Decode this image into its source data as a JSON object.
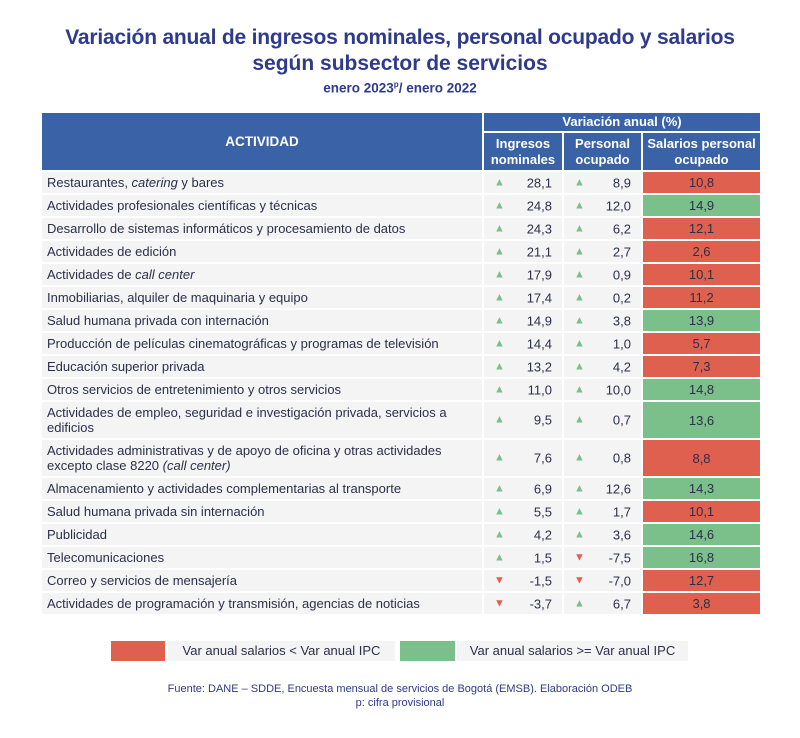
{
  "title": {
    "line1": "Variación anual de ingresos nominales, personal ocupado y salarios",
    "line2": "según subsector de servicios",
    "period_a": "enero 2023",
    "period_sup": "p",
    "period_b": "/ enero 2022"
  },
  "table": {
    "header_actividad": "ACTIVIDAD",
    "header_group": "Variación anual (%)",
    "header_ingresos": "Ingresos nominales",
    "header_personal": "Personal ocupado",
    "header_salarios": "Salarios personal ocupado",
    "rows": [
      {
        "pre": "Restaurantes, ",
        "ital": "catering",
        "post": " y bares",
        "ing": "28,1",
        "ing_dir": "up",
        "per": "8,9",
        "per_dir": "up",
        "sal": "10,8",
        "sal_status": "red"
      },
      {
        "pre": "Actividades profesionales científicas y técnicas",
        "ital": "",
        "post": "",
        "ing": "24,8",
        "ing_dir": "up",
        "per": "12,0",
        "per_dir": "up",
        "sal": "14,9",
        "sal_status": "green"
      },
      {
        "pre": "Desarrollo de sistemas informáticos y procesamiento de datos",
        "ital": "",
        "post": "",
        "ing": "24,3",
        "ing_dir": "up",
        "per": "6,2",
        "per_dir": "up",
        "sal": "12,1",
        "sal_status": "red"
      },
      {
        "pre": "Actividades de edición",
        "ital": "",
        "post": "",
        "ing": "21,1",
        "ing_dir": "up",
        "per": "2,7",
        "per_dir": "up",
        "sal": "2,6",
        "sal_status": "red"
      },
      {
        "pre": "Actividades de ",
        "ital": "call center",
        "post": "",
        "ing": "17,9",
        "ing_dir": "up",
        "per": "0,9",
        "per_dir": "up",
        "sal": "10,1",
        "sal_status": "red"
      },
      {
        "pre": "Inmobiliarias, alquiler de maquinaria y equipo",
        "ital": "",
        "post": "",
        "ing": "17,4",
        "ing_dir": "up",
        "per": "0,2",
        "per_dir": "up",
        "sal": "11,2",
        "sal_status": "red"
      },
      {
        "pre": "Salud humana privada con internación",
        "ital": "",
        "post": "",
        "ing": "14,9",
        "ing_dir": "up",
        "per": "3,8",
        "per_dir": "up",
        "sal": "13,9",
        "sal_status": "green"
      },
      {
        "pre": "Producción de películas cinematográficas y programas de televisión",
        "ital": "",
        "post": "",
        "ing": "14,4",
        "ing_dir": "up",
        "per": "1,0",
        "per_dir": "up",
        "sal": "5,7",
        "sal_status": "red"
      },
      {
        "pre": "Educación superior privada",
        "ital": "",
        "post": "",
        "ing": "13,2",
        "ing_dir": "up",
        "per": "4,2",
        "per_dir": "up",
        "sal": "7,3",
        "sal_status": "red"
      },
      {
        "pre": "Otros servicios de entretenimiento y otros servicios",
        "ital": "",
        "post": "",
        "ing": "11,0",
        "ing_dir": "up",
        "per": "10,0",
        "per_dir": "up",
        "sal": "14,8",
        "sal_status": "green"
      },
      {
        "pre": "Actividades de empleo, seguridad e investigación privada, servicios a edificios",
        "ital": "",
        "post": "",
        "ing": "9,5",
        "ing_dir": "up",
        "per": "0,7",
        "per_dir": "up",
        "sal": "13,6",
        "sal_status": "green",
        "double": true
      },
      {
        "pre": "Actividades administrativas y de apoyo de oficina y otras actividades excepto clase 8220 ",
        "ital": "(call center)",
        "post": "",
        "ing": "7,6",
        "ing_dir": "up",
        "per": "0,8",
        "per_dir": "up",
        "sal": "8,8",
        "sal_status": "red",
        "double": true
      },
      {
        "pre": "Almacenamiento y actividades complementarias al transporte",
        "ital": "",
        "post": "",
        "ing": "6,9",
        "ing_dir": "up",
        "per": "12,6",
        "per_dir": "up",
        "sal": "14,3",
        "sal_status": "green"
      },
      {
        "pre": "Salud humana privada sin internación",
        "ital": "",
        "post": "",
        "ing": "5,5",
        "ing_dir": "up",
        "per": "1,7",
        "per_dir": "up",
        "sal": "10,1",
        "sal_status": "red"
      },
      {
        "pre": "Publicidad",
        "ital": "",
        "post": "",
        "ing": "4,2",
        "ing_dir": "up",
        "per": "3,6",
        "per_dir": "up",
        "sal": "14,6",
        "sal_status": "green"
      },
      {
        "pre": "Telecomunicaciones",
        "ital": "",
        "post": "",
        "ing": "1,5",
        "ing_dir": "up",
        "per": "-7,5",
        "per_dir": "down",
        "sal": "16,8",
        "sal_status": "green"
      },
      {
        "pre": "Correo y servicios de mensajería",
        "ital": "",
        "post": "",
        "ing": "-1,5",
        "ing_dir": "down",
        "per": "-7,0",
        "per_dir": "down",
        "sal": "12,7",
        "sal_status": "red"
      },
      {
        "pre": "Actividades de programación y transmisión,  agencias de noticias",
        "ital": "",
        "post": "",
        "ing": "-3,7",
        "ing_dir": "down",
        "per": "6,7",
        "per_dir": "up",
        "sal": "3,8",
        "sal_status": "red"
      }
    ]
  },
  "icons": {
    "up": "triangle-up-icon",
    "down": "triangle-down-icon"
  },
  "colors": {
    "header": "#3a62a6",
    "red": "#e06050",
    "green": "#7bc08a",
    "title": "#2e3a8a"
  },
  "legend": {
    "red_label": "Var anual salarios < Var anual IPC",
    "green_label": "Var anual salarios >= Var anual IPC"
  },
  "footer": {
    "source": "Fuente: DANE – SDDE, Encuesta mensual de servicios de Bogotá (EMSB). Elaboración ODEB",
    "note": "p: cifra provisional"
  }
}
